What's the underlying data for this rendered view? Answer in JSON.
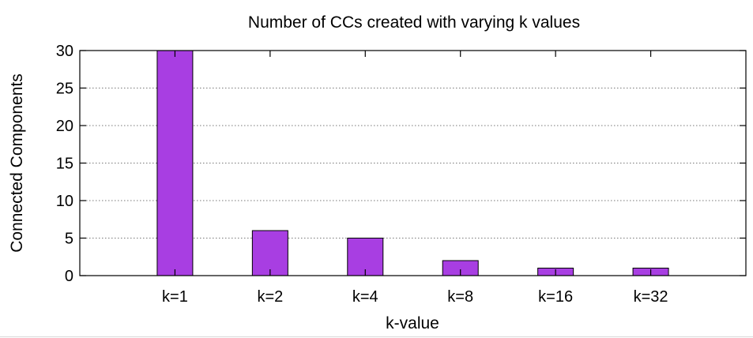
{
  "chart_data": {
    "type": "bar",
    "title": "Number of CCs created with varying k values",
    "xlabel": "k-value",
    "ylabel": "Connected Components",
    "categories": [
      "k=1",
      "k=2",
      "k=4",
      "k=8",
      "k=16",
      "k=32"
    ],
    "values": [
      30,
      6,
      5,
      2,
      1,
      1
    ],
    "ylim": [
      0,
      30
    ],
    "yticks": [
      "0",
      "5",
      "10",
      "15",
      "20",
      "25",
      "30"
    ],
    "grid": "horizontal-dotted",
    "legend": "none",
    "bar_color": "#a83ee2"
  }
}
